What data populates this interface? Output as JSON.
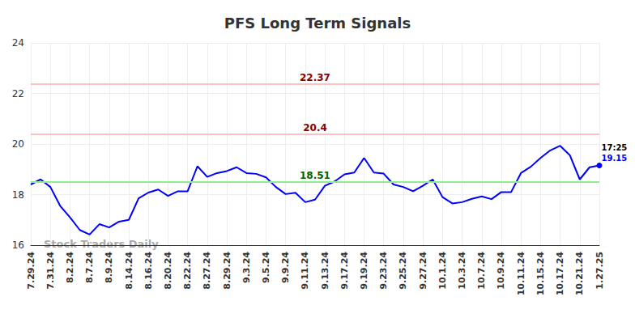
{
  "chart_data": {
    "type": "line",
    "title": "PFS Long Term Signals",
    "categories": [
      "7.29.24",
      null,
      "7.31.24",
      null,
      "8.2.24",
      null,
      "8.7.24",
      null,
      "8.9.24",
      null,
      "8.14.24",
      null,
      "8.16.24",
      null,
      "8.20.24",
      null,
      "8.22.24",
      null,
      "8.27.24",
      null,
      "8.29.24",
      null,
      "9.3.24",
      null,
      "9.5.24",
      null,
      "9.9.24",
      null,
      "9.11.24",
      null,
      "9.13.24",
      null,
      "9.17.24",
      null,
      "9.19.24",
      null,
      "9.23.24",
      null,
      "9.25.24",
      null,
      "9.27.24",
      null,
      "10.1.24",
      null,
      "10.3.24",
      null,
      "10.7.24",
      null,
      "10.9.24",
      null,
      "10.11.24",
      null,
      "10.15.24",
      null,
      "10.17.24",
      null,
      "10.21.24",
      null,
      "1.27.25"
    ],
    "values": [
      18.4,
      18.6,
      18.3,
      17.55,
      17.1,
      16.6,
      16.42,
      16.83,
      16.7,
      16.93,
      17.0,
      17.85,
      18.08,
      18.2,
      17.95,
      18.13,
      18.13,
      19.12,
      18.7,
      18.85,
      18.93,
      19.08,
      18.85,
      18.82,
      18.68,
      18.3,
      18.02,
      18.07,
      17.7,
      17.8,
      18.35,
      18.52,
      18.8,
      18.87,
      19.45,
      18.87,
      18.83,
      18.4,
      18.3,
      18.13,
      18.35,
      18.6,
      17.9,
      17.65,
      17.7,
      17.83,
      17.93,
      17.82,
      18.1,
      18.1,
      18.85,
      19.1,
      19.45,
      19.75,
      19.93,
      19.55,
      18.6,
      19.08,
      19.15
    ],
    "color": "#0000ff",
    "ylim": [
      16,
      24
    ],
    "yticks": [
      16,
      18,
      20,
      22,
      24
    ],
    "grid": true,
    "levels": [
      {
        "value": 22.37,
        "color": "#ffc0c0",
        "text_color": "#8b0000"
      },
      {
        "value": 20.4,
        "color": "#ffc0c0",
        "text_color": "#8b0000"
      },
      {
        "value": 18.51,
        "color": "#90ee90",
        "text_color": "#006400"
      }
    ],
    "last_point": {
      "time": "17:25",
      "value": 19.15
    },
    "watermark": "Stock Traders Daily"
  }
}
